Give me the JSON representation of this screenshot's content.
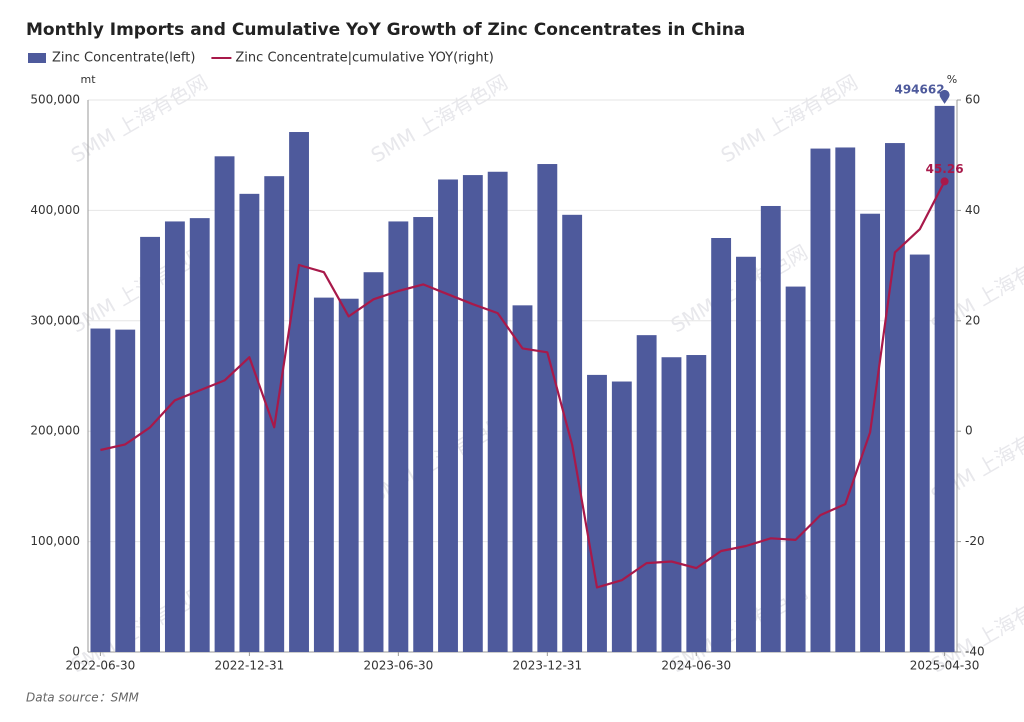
{
  "chart_data": {
    "type": "bar_line",
    "title": "Monthly Imports and Cumulative YoY Growth of Zinc Concentrates in China",
    "y_unit": "mt",
    "y2_unit": "%",
    "source": "Data source：SMM",
    "watermark": "SMM 上海有色网",
    "categories": [
      "2022-06-30",
      null,
      null,
      null,
      null,
      null,
      "2022-12-31",
      null,
      null,
      null,
      null,
      null,
      "2023-06-30",
      null,
      null,
      null,
      null,
      null,
      "2023-12-31",
      null,
      null,
      null,
      null,
      null,
      "2024-06-30",
      null,
      null,
      null,
      null,
      null,
      null,
      null,
      null,
      null,
      "2025-04-30"
    ],
    "series": [
      {
        "name": "Zinc Concentrate(left)",
        "color": "#4e5a9c",
        "kind": "bar",
        "values": [
          293000,
          292000,
          376000,
          390000,
          393000,
          449000,
          415000,
          431000,
          471000,
          321000,
          320000,
          344000,
          390000,
          394000,
          428000,
          432000,
          435000,
          314000,
          442000,
          396000,
          251000,
          245000,
          287000,
          267000,
          269000,
          375000,
          358000,
          404000,
          331000,
          456000,
          457000,
          397000,
          461000,
          360000,
          494662
        ]
      },
      {
        "name": "Zinc Concentrate|cumulative YOY(right)",
        "color": "#a8194a",
        "kind": "line",
        "axis": "y2",
        "values": [
          -3.4,
          -2.4,
          0.7,
          5.6,
          7.4,
          9.2,
          13.4,
          0.7,
          30.1,
          28.8,
          20.8,
          23.9,
          25.4,
          26.6,
          24.8,
          23,
          21.4,
          15,
          14.3,
          -2.5,
          -28.3,
          -27,
          -23.9,
          -23.6,
          -24.8,
          -21.7,
          -20.8,
          -19.4,
          -19.7,
          -15.2,
          -13.2,
          -0.2,
          32.4,
          36.6,
          45.26
        ]
      }
    ],
    "ylim": [
      0,
      500000
    ],
    "yticks": [
      0,
      {
        "value": 100000,
        "label": "100,000"
      },
      {
        "value": 200000,
        "label": "200,000"
      },
      {
        "value": 300000,
        "label": "300,000"
      },
      {
        "value": 400000,
        "label": "400,000"
      },
      {
        "value": 500000,
        "label": "500,000"
      }
    ],
    "y2lim": [
      -40,
      60
    ],
    "y2ticks": [
      -40,
      -20,
      0,
      20,
      40,
      60
    ],
    "grid": true
  }
}
